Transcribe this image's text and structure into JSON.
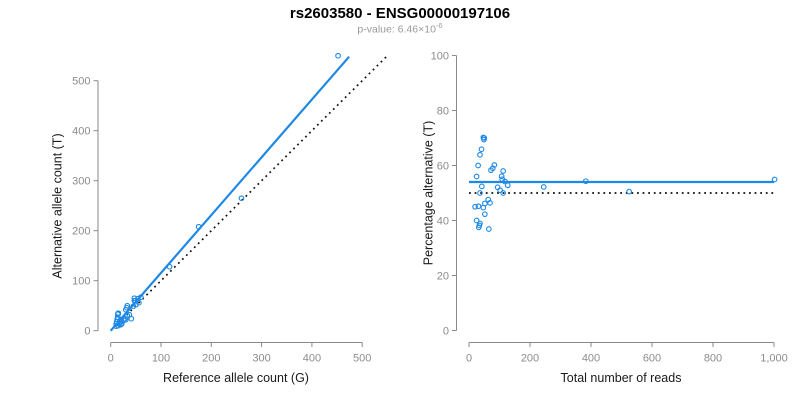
{
  "title": "rs2603580 - ENSG00000197106",
  "subtitle": {
    "text": "p-value: 6.46×10",
    "exponent": "-6"
  },
  "colors": {
    "accent_blue": "#1e88e5",
    "dotted_black": "#111111",
    "axis_gray": "#8a8a8a",
    "tick_label_gray": "#8c8c8c",
    "axis_title_black": "#1a1a1a",
    "subtitle_gray": "#9b9b9b"
  },
  "chart_data": [
    {
      "type": "scatter",
      "name": "allele-counts-scatter",
      "xlabel": "Reference allele count (G)",
      "ylabel": "Alternative allele count (T)",
      "xlim": [
        0,
        550
      ],
      "ylim": [
        0,
        560
      ],
      "xticks": [
        0,
        100,
        200,
        300,
        400,
        500
      ],
      "xtick_labels": [
        "0",
        "100",
        "200",
        "300",
        "400",
        "500"
      ],
      "yticks": [
        0,
        100,
        200,
        300,
        400,
        500
      ],
      "ytick_labels": [
        "0",
        "100",
        "200",
        "300",
        "400",
        "500"
      ],
      "grid": false,
      "marker": "open-circle",
      "points": [
        [
          452,
          550
        ],
        [
          260,
          265
        ],
        [
          175,
          208
        ],
        [
          117,
          128
        ],
        [
          14,
          33
        ],
        [
          15,
          35
        ],
        [
          15,
          34
        ],
        [
          14,
          27
        ],
        [
          13,
          23
        ],
        [
          12,
          18
        ],
        [
          32,
          46
        ],
        [
          33,
          50
        ],
        [
          30,
          42
        ],
        [
          47,
          65
        ],
        [
          11,
          14
        ],
        [
          47,
          60
        ],
        [
          49,
          60
        ],
        [
          54,
          64
        ],
        [
          60,
          67
        ],
        [
          20,
          22
        ],
        [
          45,
          49
        ],
        [
          50,
          52
        ],
        [
          18,
          18
        ],
        [
          56,
          56
        ],
        [
          33,
          30
        ],
        [
          37,
          32
        ],
        [
          17,
          14
        ],
        [
          28,
          24
        ],
        [
          26,
          21
        ],
        [
          11,
          9
        ],
        [
          30,
          22
        ],
        [
          15,
          10
        ],
        [
          22,
          14
        ],
        [
          21,
          13
        ],
        [
          20,
          12
        ],
        [
          41,
          24
        ]
      ],
      "lines": [
        {
          "name": "identity-line",
          "x0": 0,
          "y0": 0,
          "x1": 550,
          "y1": 550,
          "style": "dotted"
        },
        {
          "name": "fit-line",
          "x0": 0,
          "y0": 0,
          "x1": 474,
          "y1": 548,
          "style": "solid"
        }
      ]
    },
    {
      "type": "scatter",
      "name": "percentage-vs-reads-scatter",
      "xlabel": "Total number of reads",
      "ylabel": "Percentage alternative (T)",
      "xlim": [
        0,
        1010
      ],
      "ylim": [
        0,
        100
      ],
      "xticks": [
        0,
        200,
        400,
        600,
        800,
        1000
      ],
      "xtick_labels": [
        "0",
        "200",
        "400",
        "600",
        "800",
        "1,000"
      ],
      "yticks": [
        0,
        20,
        40,
        60,
        80,
        100
      ],
      "ytick_labels": [
        "0",
        "20",
        "40",
        "60",
        "80",
        "100"
      ],
      "grid": false,
      "marker": "open-circle",
      "points": [
        [
          1002,
          54.9
        ],
        [
          525,
          50.5
        ],
        [
          383,
          54.3
        ],
        [
          245,
          52.2
        ],
        [
          47,
          70.2
        ],
        [
          50,
          70.0
        ],
        [
          49,
          69.4
        ],
        [
          41,
          65.9
        ],
        [
          36,
          63.9
        ],
        [
          30,
          60.0
        ],
        [
          78,
          59.0
        ],
        [
          83,
          60.2
        ],
        [
          72,
          58.3
        ],
        [
          112,
          58.0
        ],
        [
          25,
          56.0
        ],
        [
          107,
          56.1
        ],
        [
          109,
          55.0
        ],
        [
          118,
          54.2
        ],
        [
          127,
          52.8
        ],
        [
          42,
          52.4
        ],
        [
          94,
          52.1
        ],
        [
          102,
          51.0
        ],
        [
          36,
          50.0
        ],
        [
          112,
          50.0
        ],
        [
          63,
          47.6
        ],
        [
          69,
          46.4
        ],
        [
          31,
          45.2
        ],
        [
          52,
          46.2
        ],
        [
          47,
          44.7
        ],
        [
          20,
          45.0
        ],
        [
          52,
          42.3
        ],
        [
          25,
          40.0
        ],
        [
          36,
          38.9
        ],
        [
          34,
          38.2
        ],
        [
          32,
          37.5
        ],
        [
          65,
          36.9
        ]
      ],
      "lines": [
        {
          "name": "expected-50pct-line",
          "x0": 0,
          "y0": 50,
          "x1": 1000,
          "y1": 50,
          "style": "dotted"
        },
        {
          "name": "mean-percentage-line",
          "x0": 0,
          "y0": 54,
          "x1": 1000,
          "y1": 54,
          "style": "solid"
        }
      ]
    }
  ]
}
